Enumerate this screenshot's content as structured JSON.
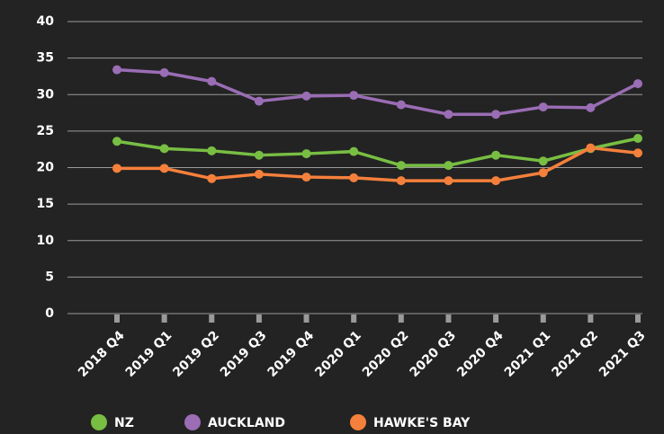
{
  "chart_data": {
    "type": "line",
    "categories": [
      "2018 Q4",
      "2019 Q1",
      "2019 Q2",
      "2019 Q3",
      "2019 Q4",
      "2020 Q1",
      "2020 Q2",
      "2020 Q3",
      "2020 Q4",
      "2021 Q1",
      "2021 Q2",
      "2021 Q3"
    ],
    "series": [
      {
        "name": "NZ",
        "color": "#78be43",
        "values": [
          23.6,
          22.6,
          22.3,
          21.7,
          21.9,
          22.2,
          20.3,
          20.3,
          21.7,
          20.9,
          22.6,
          24.0
        ]
      },
      {
        "name": "AUCKLAND",
        "color": "#9a6db5",
        "values": [
          33.4,
          33.0,
          31.8,
          29.1,
          29.8,
          29.9,
          28.6,
          27.3,
          27.3,
          28.3,
          28.2,
          31.5
        ]
      },
      {
        "name": "HAWKE'S BAY",
        "color": "#f5803c",
        "values": [
          19.9,
          19.9,
          18.5,
          19.1,
          18.7,
          18.6,
          18.2,
          18.2,
          18.2,
          19.3,
          22.7,
          22.0
        ]
      }
    ],
    "ylim": [
      0,
      40
    ],
    "yticks": [
      0,
      5,
      10,
      15,
      20,
      25,
      30,
      35,
      40
    ],
    "grid": true,
    "legend": "bottom"
  }
}
